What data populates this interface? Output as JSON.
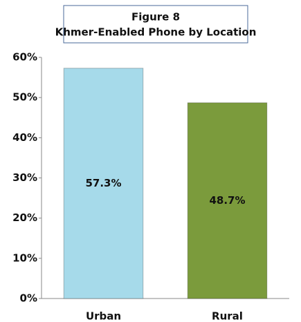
{
  "chart_data": {
    "type": "bar",
    "title": "Figure 8",
    "subtitle": "Khmer-Enabled Phone by Location",
    "categories": [
      "Urban",
      "Rural"
    ],
    "values": [
      57.3,
      48.7
    ],
    "value_labels": [
      "57.3%",
      "48.7%"
    ],
    "colors": [
      "#a6daea",
      "#7b9b3c"
    ],
    "ylim": [
      0,
      60
    ],
    "yticks": [
      {
        "value": 0,
        "label": "0%"
      },
      {
        "value": 10,
        "label": "10%"
      },
      {
        "value": 20,
        "label": "20%"
      },
      {
        "value": 30,
        "label": "30%"
      },
      {
        "value": 40,
        "label": "40%"
      },
      {
        "value": 50,
        "label": "50%"
      },
      {
        "value": 60,
        "label": "60%"
      }
    ],
    "grid": false
  }
}
